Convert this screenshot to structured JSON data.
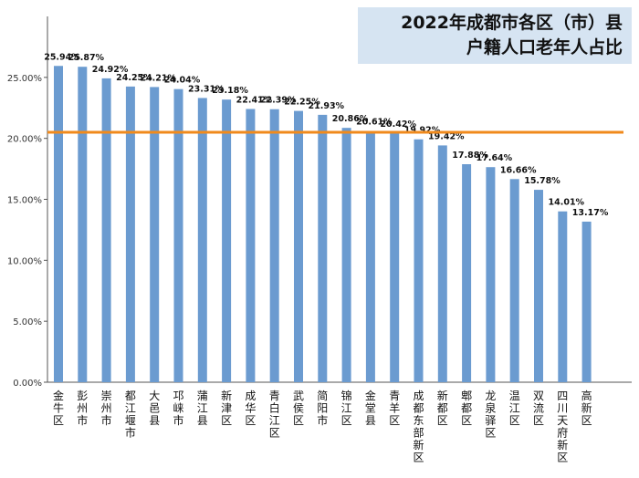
{
  "chart_data": {
    "type": "bar",
    "title": "2022年成都市各区（市）县户籍人口老年人占比",
    "title_lines": [
      "2022年成都市各区（市）县",
      "户籍人口老年人占比"
    ],
    "categories": [
      "金牛区",
      "彭州市",
      "崇州市",
      "都江堰市",
      "大邑县",
      "邛崃市",
      "蒲江县",
      "新津区",
      "成华区",
      "青白江区",
      "武侯区",
      "简阳市",
      "锦江区",
      "金堂县",
      "青羊区",
      "成都东部新区",
      "新都区",
      "郫都区",
      "龙泉驿区",
      "温江区",
      "双流区",
      "四川天府新区",
      "高新区"
    ],
    "values": [
      25.94,
      25.87,
      24.92,
      24.25,
      24.21,
      24.04,
      23.31,
      23.18,
      22.41,
      22.39,
      22.25,
      21.93,
      20.86,
      20.61,
      20.42,
      19.92,
      19.42,
      17.88,
      17.64,
      16.66,
      15.78,
      14.01,
      13.17
    ],
    "value_labels": [
      "25.94%",
      "25.87%",
      "24.92%",
      "24.25%",
      "24.21%",
      "24.04%",
      "23.31%",
      "23.18%",
      "22.41%",
      "22.39%",
      "22.25%",
      "21.93%",
      "20.86%",
      "20.61%",
      "20.42%",
      "19.92%",
      "19.42%",
      "17.88%",
      "17.64%",
      "16.66%",
      "15.78%",
      "14.01%",
      "13.17%"
    ],
    "ylim": [
      0,
      30
    ],
    "yticks": [
      0,
      5,
      10,
      15,
      20,
      25
    ],
    "ytick_labels": [
      "0.00%",
      "5.00%",
      "10.00%",
      "15.00%",
      "20.00%",
      "25.00%"
    ],
    "reference_line": 20.5,
    "xlabel": "",
    "ylabel": "",
    "grid": false,
    "bar_color": "#6b9bd0",
    "reference_line_color": "#f08a1c"
  }
}
